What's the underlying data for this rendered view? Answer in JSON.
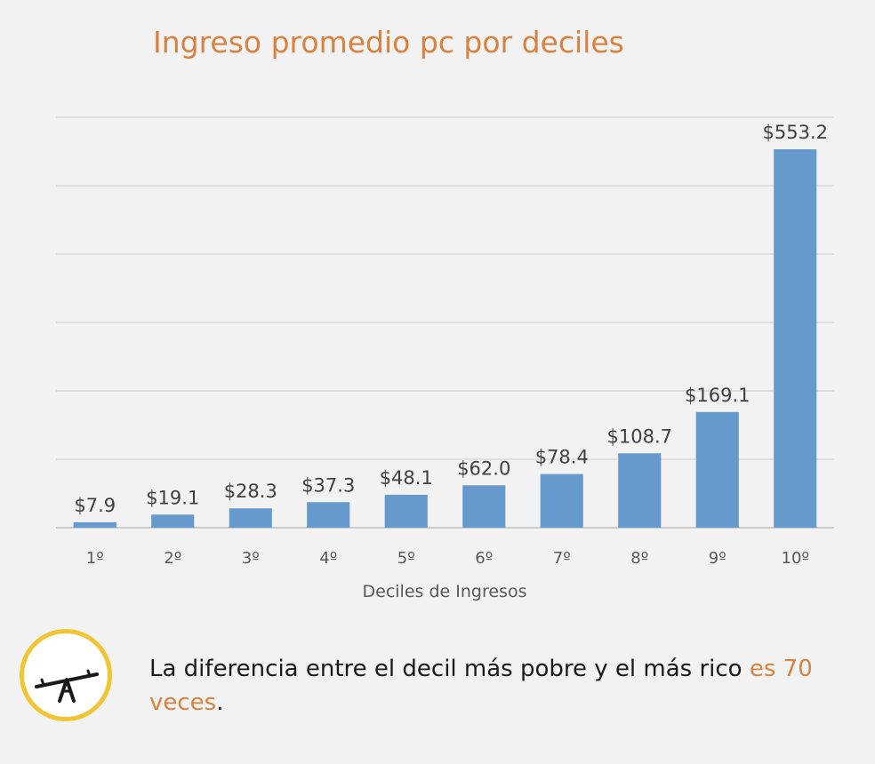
{
  "chart_data": {
    "type": "bar",
    "title": "Ingreso promedio pc por deciles",
    "xlabel": "Deciles de Ingresos",
    "ylabel": "",
    "categories": [
      "1º",
      "2º",
      "3º",
      "4º",
      "5º",
      "6º",
      "7º",
      "8º",
      "9º",
      "10º"
    ],
    "values": [
      7.9,
      19.1,
      28.3,
      37.3,
      48.1,
      62.0,
      78.4,
      108.7,
      169.1,
      553.2
    ],
    "data_labels": [
      "$7.9",
      "$19.1",
      "$28.3",
      "$37.3",
      "$48.1",
      "$62.0",
      "$78.4",
      "$108.7",
      "$169.1",
      "$553.2"
    ],
    "ylim": [
      0,
      600
    ],
    "yticks": [
      0,
      100,
      200,
      300,
      400,
      500,
      600
    ],
    "grid": true,
    "legend": "none",
    "bar_color": "#6699cc"
  },
  "footnote": {
    "icon": "seesaw-icon",
    "text_main": "La diferencia entre el decil más pobre y el más rico ",
    "text_highlight": "es 70 veces",
    "text_end": ".",
    "highlight_color": "#d9823f"
  },
  "colors": {
    "title": "#d9823f",
    "icon_ring": "#f2c534",
    "background": "#f2f2f2"
  }
}
